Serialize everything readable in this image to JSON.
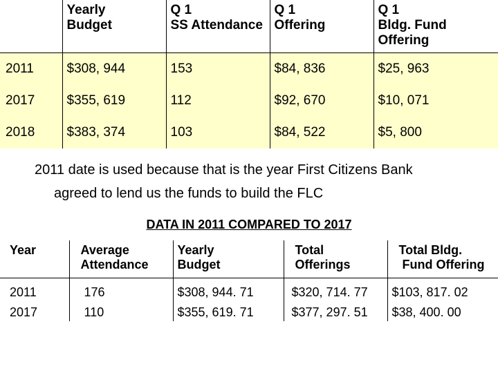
{
  "table1": {
    "columns": [
      {
        "line1": "",
        "line2": ""
      },
      {
        "line1": "Yearly",
        "line2": "Budget"
      },
      {
        "line1": "Q 1",
        "line2": "SS Attendance"
      },
      {
        "line1": "Q 1",
        "line2": "Offering"
      },
      {
        "line1": "Q 1",
        "line2": "Bldg. Fund Offering"
      }
    ],
    "rows": [
      {
        "year": "2011",
        "budget": "$308, 944",
        "attend": "153",
        "offer": "$84, 836",
        "bldg": " $25, 963"
      },
      {
        "year": "2017",
        "budget": "$355, 619",
        "attend": "112",
        "offer": "$92, 670",
        "bldg": " $10, 071"
      },
      {
        "year": "2018",
        "budget": "$383, 374",
        "attend": "103",
        "offer": "$84, 522",
        "bldg": " $5, 800"
      }
    ],
    "row_bg": "#ffffcc",
    "border_color": "#000000"
  },
  "note": {
    "line1": "2011 date is used because that is the year First Citizens Bank",
    "line2": "agreed to lend us the funds to build the FLC"
  },
  "section_title": "DATA IN 2011 COMPARED TO 2017",
  "table2": {
    "columns": [
      {
        "line1": "Year",
        "line2": ""
      },
      {
        "line1": "Average",
        "line2": "Attendance"
      },
      {
        "line1": "Yearly",
        "line2": "Budget"
      },
      {
        "line1": "Total",
        "line2": "Offerings"
      },
      {
        "line1": "Total Bldg.",
        "line2": " Fund Offering"
      }
    ],
    "rows": [
      {
        "year": "2011",
        "attend": "176",
        "budget": "$308, 944. 71",
        "offer": "$320, 714. 77",
        "bldg": " $103, 817. 02"
      },
      {
        "year": "2017",
        "attend": "110",
        "budget": "$355, 619. 71",
        "offer": "$377, 297. 51",
        "bldg": " $38, 400. 00"
      }
    ]
  }
}
